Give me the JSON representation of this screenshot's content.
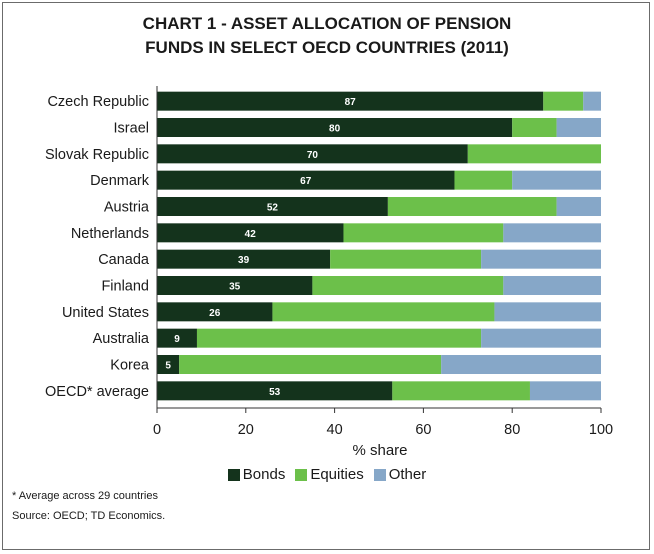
{
  "chart_data": {
    "type": "bar",
    "orientation": "horizontal",
    "stacked": true,
    "title_line1": "CHART 1 - ASSET ALLOCATION OF PENSION",
    "title_line2": "FUNDS IN SELECT OECD COUNTRIES (2011)",
    "xlabel": "% share",
    "xlim": [
      0,
      100
    ],
    "xticks": [
      "0",
      "20",
      "40",
      "60",
      "80",
      "100"
    ],
    "categories": [
      "Czech Republic",
      "Israel",
      "Slovak Republic",
      "Denmark",
      "Austria",
      "Netherlands",
      "Canada",
      "Finland",
      "United States",
      "Australia",
      "Korea",
      "OECD* average"
    ],
    "series": [
      {
        "name": "Bonds",
        "color": "#14331c",
        "values": [
          87,
          80,
          70,
          67,
          52,
          42,
          39,
          35,
          26,
          9,
          5,
          53
        ]
      },
      {
        "name": "Equities",
        "color": "#6cc04a",
        "values": [
          9,
          10,
          30,
          13,
          38,
          36,
          34,
          43,
          50,
          64,
          59,
          31
        ]
      },
      {
        "name": "Other",
        "color": "#86a7c8",
        "values": [
          4,
          10,
          0,
          20,
          10,
          22,
          27,
          22,
          24,
          27,
          36,
          16
        ]
      }
    ],
    "data_labels": [
      "87",
      "80",
      "70",
      "67",
      "52",
      "42",
      "39",
      "35",
      "26",
      "9",
      "5",
      "53"
    ],
    "legend_position": "bottom",
    "grid": false
  },
  "footnote": "* Average across 29 countries",
  "source": "Source: OECD; TD Economics."
}
